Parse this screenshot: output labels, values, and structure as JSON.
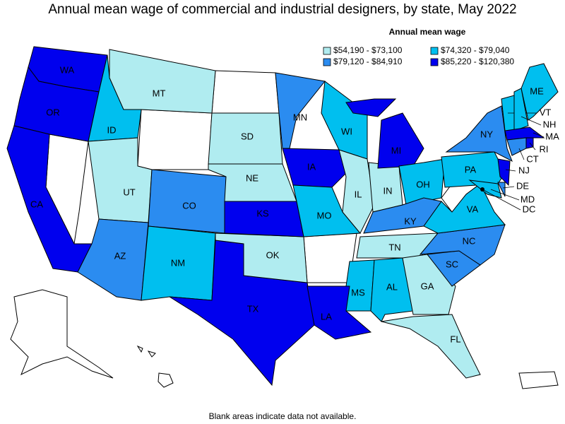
{
  "title": "Annual mean wage of commercial and industrial designers, by state, May 2022",
  "legend": {
    "title": "Annual mean wage",
    "ranges": [
      {
        "label": "$54,190 - $73,100",
        "color": "#b0ecf0"
      },
      {
        "label": "$74,320 - $79,040",
        "color": "#00bfef"
      },
      {
        "label": "$79,120 - $84,910",
        "color": "#2b8cf0"
      },
      {
        "label": "$85,220 - $120,380",
        "color": "#0000ee"
      }
    ]
  },
  "states": [
    {
      "name": "WA",
      "range": 3
    },
    {
      "name": "OR",
      "range": 3
    },
    {
      "name": "CA",
      "range": 3
    },
    {
      "name": "ID",
      "range": 1
    },
    {
      "name": "MT",
      "range": 0
    },
    {
      "name": "UT",
      "range": 0
    },
    {
      "name": "AZ",
      "range": 2
    },
    {
      "name": "CO",
      "range": 2
    },
    {
      "name": "NM",
      "range": 1
    },
    {
      "name": "TX",
      "range": 3
    },
    {
      "name": "OK",
      "range": 0
    },
    {
      "name": "KS",
      "range": 3
    },
    {
      "name": "NE",
      "range": 0
    },
    {
      "name": "SD",
      "range": 0
    },
    {
      "name": "MN",
      "range": 2
    },
    {
      "name": "IA",
      "range": 3
    },
    {
      "name": "MO",
      "range": 1
    },
    {
      "name": "WI",
      "range": 1
    },
    {
      "name": "IL",
      "range": 0
    },
    {
      "name": "IN",
      "range": 0
    },
    {
      "name": "MI",
      "range": 3
    },
    {
      "name": "OH",
      "range": 1
    },
    {
      "name": "KY",
      "range": 2
    },
    {
      "name": "TN",
      "range": 0
    },
    {
      "name": "MS",
      "range": 1
    },
    {
      "name": "AL",
      "range": 1
    },
    {
      "name": "LA",
      "range": 3
    },
    {
      "name": "GA",
      "range": 0
    },
    {
      "name": "FL",
      "range": 0
    },
    {
      "name": "SC",
      "range": 2
    },
    {
      "name": "NC",
      "range": 2
    },
    {
      "name": "VA",
      "range": 1
    },
    {
      "name": "PA",
      "range": 1
    },
    {
      "name": "NY",
      "range": 2
    },
    {
      "name": "ME",
      "range": 1
    },
    {
      "name": "VT",
      "range": 1
    },
    {
      "name": "NH",
      "range": 1
    },
    {
      "name": "MA",
      "range": 3
    },
    {
      "name": "RI",
      "range": 3
    },
    {
      "name": "CT",
      "range": 2
    },
    {
      "name": "NJ",
      "range": 3
    },
    {
      "name": "DE",
      "range": 2
    },
    {
      "name": "MD",
      "range": 1
    },
    {
      "name": "DC",
      "range": 3
    }
  ],
  "footnote": "Blank areas indicate data not available."
}
